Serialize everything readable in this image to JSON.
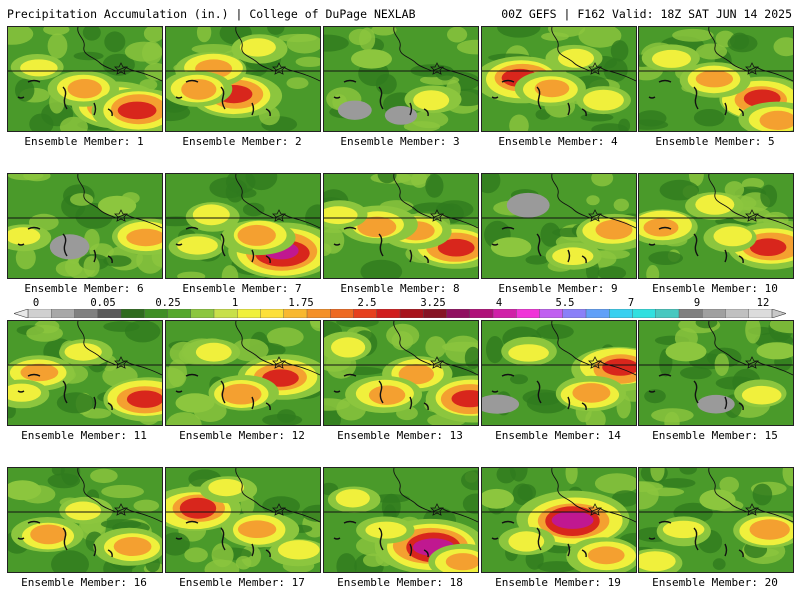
{
  "header": {
    "left_title": "Precipitation Accumulation (in.) | College of DuPage NEXLAB",
    "right_title": "00Z GEFS | F162 Valid: 18Z SAT JUN 14 2025"
  },
  "members": [
    {
      "label": "Ensemble Member: 1"
    },
    {
      "label": "Ensemble Member: 2"
    },
    {
      "label": "Ensemble Member: 3"
    },
    {
      "label": "Ensemble Member: 4"
    },
    {
      "label": "Ensemble Member: 5"
    },
    {
      "label": "Ensemble Member: 6"
    },
    {
      "label": "Ensemble Member: 7"
    },
    {
      "label": "Ensemble Member: 8"
    },
    {
      "label": "Ensemble Member: 9"
    },
    {
      "label": "Ensemble Member: 10"
    },
    {
      "label": "Ensemble Member: 11"
    },
    {
      "label": "Ensemble Member: 12"
    },
    {
      "label": "Ensemble Member: 13"
    },
    {
      "label": "Ensemble Member: 14"
    },
    {
      "label": "Ensemble Member: 15"
    },
    {
      "label": "Ensemble Member: 16"
    },
    {
      "label": "Ensemble Member: 17"
    },
    {
      "label": "Ensemble Member: 18"
    },
    {
      "label": "Ensemble Member: 19"
    },
    {
      "label": "Ensemble Member: 20"
    }
  ],
  "colorbar": {
    "tick_labels": [
      "0",
      "0.05",
      "0.25",
      "1",
      "1.75",
      "2.5",
      "3.25",
      "4",
      "5.5",
      "7",
      "9",
      "12"
    ],
    "colors": [
      "#d0d0d0",
      "#a8a8a8",
      "#808080",
      "#5a5a5a",
      "#2f6b1e",
      "#3f8f25",
      "#56a82c",
      "#8cc63e",
      "#c8e04a",
      "#f0f03c",
      "#fde03a",
      "#f8b830",
      "#f49028",
      "#ee6a22",
      "#e6401e",
      "#d01e1e",
      "#a8141c",
      "#861424",
      "#901060",
      "#b0107a",
      "#d020a8",
      "#f034d8",
      "#c060f0",
      "#8a80f8",
      "#60a0f8",
      "#38d0f0",
      "#30e0e0",
      "#48c8c0",
      "#808080",
      "#a0a0a0",
      "#c0c0c0",
      "#dcdcdc"
    ]
  },
  "palette": {
    "green_dark": "#2f7a1e",
    "green": "#4a9a2a",
    "green_light": "#8cc63e",
    "yellow": "#f0f03c",
    "orange": "#f4a030",
    "red": "#d8261c",
    "magenta": "#c01890",
    "gray": "#9a9a9a"
  }
}
